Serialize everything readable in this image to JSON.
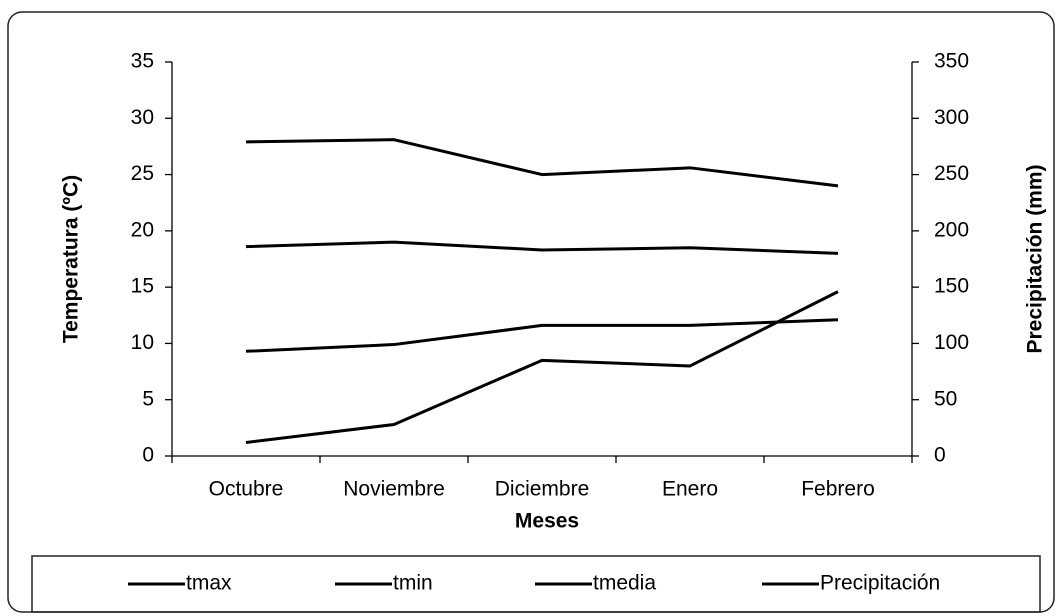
{
  "chart_data": {
    "type": "line",
    "xlabel": "Meses",
    "ylabel": "Temperatura (ºC)",
    "y2label": "Precipitación (mm)",
    "categories": [
      "Octubre",
      "Noviembre",
      "Diciembre",
      "Enero",
      "Febrero"
    ],
    "series": [
      {
        "name": "tmax",
        "color": "#000000",
        "values": [
          27.9,
          28.1,
          25.0,
          25.6,
          24.0
        ]
      },
      {
        "name": "tmin",
        "color": "#000000",
        "values": [
          9.3,
          9.9,
          11.6,
          11.6,
          12.1
        ]
      },
      {
        "name": "tmedia",
        "color": "#000000",
        "values": [
          18.6,
          19.0,
          18.3,
          18.5,
          18.0
        ]
      },
      {
        "name": "Precipitación",
        "color": "#000000",
        "axis": "y2",
        "values": [
          12,
          28,
          85,
          80,
          146
        ]
      }
    ],
    "ylim": [
      0,
      35
    ],
    "yticks": [
      0,
      5,
      10,
      15,
      20,
      25,
      30,
      35
    ],
    "y2lim": [
      0,
      350
    ],
    "y2ticks": [
      0,
      50,
      100,
      150,
      200,
      250,
      300,
      350
    ],
    "legend": "bottom"
  }
}
